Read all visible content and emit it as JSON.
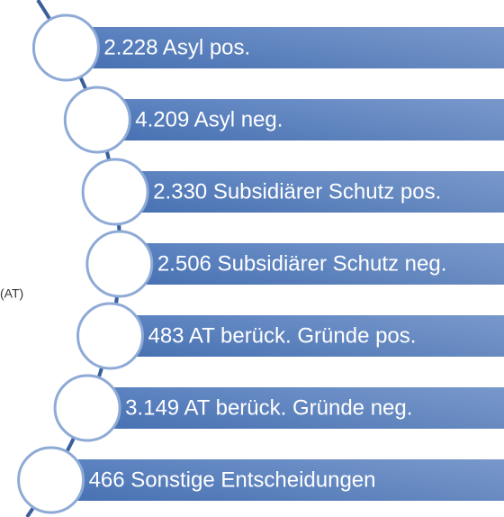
{
  "items": [
    {
      "label": "2.228 Asyl pos."
    },
    {
      "label": "4.209 Asyl neg."
    },
    {
      "label": "2.330 Subsidiärer Schutz pos."
    },
    {
      "label": "2.506 Subsidiärer Schutz neg."
    },
    {
      "label": "483 AT berück. Gründe pos."
    },
    {
      "label": "3.149 AT berück. Gründe neg."
    },
    {
      "label": "466 Sonstige Entscheidungen"
    }
  ],
  "side_note": "(AT)"
}
